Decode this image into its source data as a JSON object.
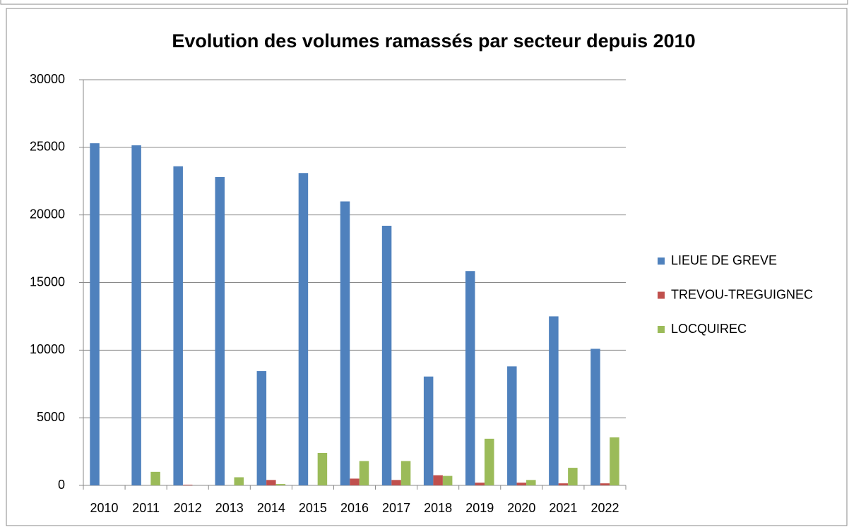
{
  "chart_data": {
    "type": "bar",
    "title": "Evolution des volumes ramassés par secteur depuis 2010",
    "categories": [
      "2010",
      "2011",
      "2012",
      "2013",
      "2014",
      "2015",
      "2016",
      "2017",
      "2018",
      "2019",
      "2020",
      "2021",
      "2022"
    ],
    "series": [
      {
        "name": "LIEUE DE GREVE",
        "color": "#4f81bd",
        "values": [
          25300,
          25150,
          23600,
          22800,
          8450,
          23100,
          21000,
          19200,
          8050,
          15850,
          8800,
          12500,
          10100
        ]
      },
      {
        "name": "TREVOU-TREGUIGNEC",
        "color": "#c0504d",
        "values": [
          0,
          0,
          50,
          0,
          400,
          0,
          500,
          400,
          750,
          200,
          200,
          150,
          150
        ]
      },
      {
        "name": "LOCQUIREC",
        "color": "#9bbb59",
        "values": [
          0,
          1000,
          0,
          600,
          100,
          2400,
          1800,
          1800,
          700,
          3450,
          400,
          1300,
          3550
        ]
      }
    ],
    "ylim": [
      0,
      30000
    ],
    "yticks": [
      0,
      5000,
      10000,
      15000,
      20000,
      25000,
      30000
    ],
    "grid": true,
    "legend": "right"
  }
}
